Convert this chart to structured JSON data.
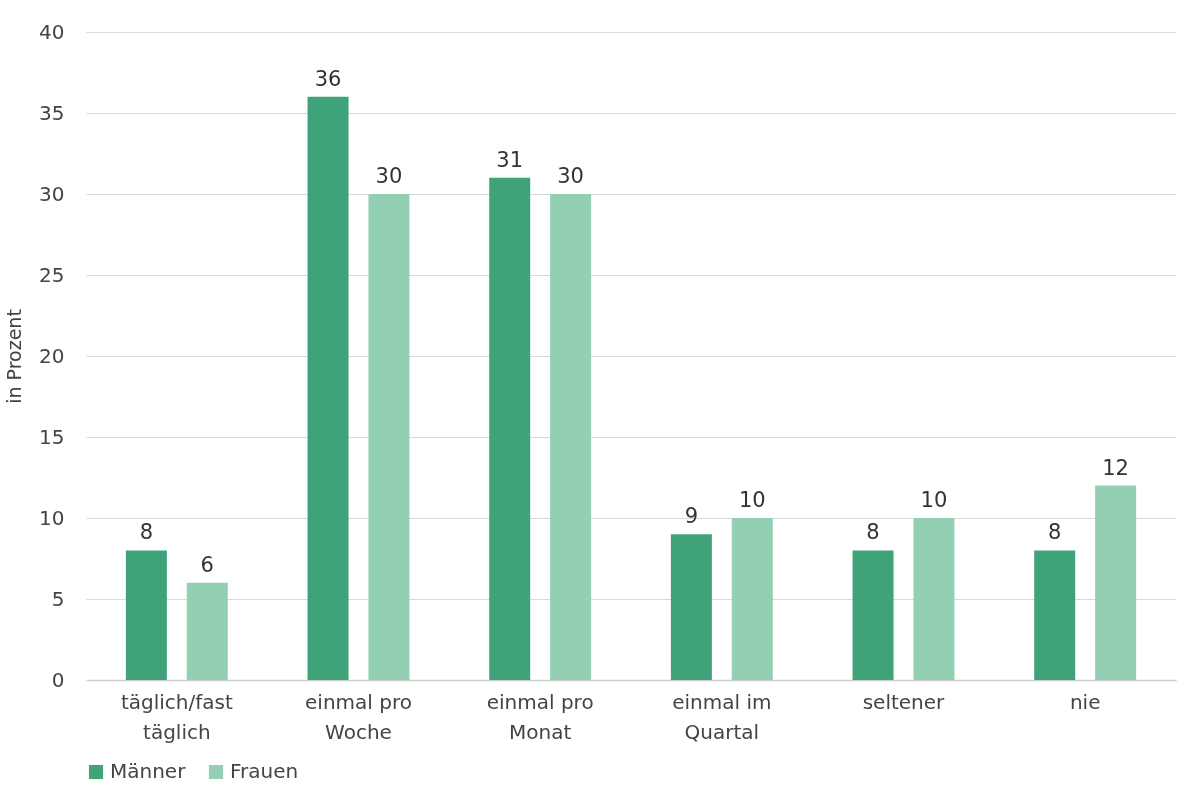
{
  "chart_data": {
    "type": "bar",
    "ylabel": "in Prozent",
    "categories": [
      "täglich/fast täglich",
      "einmal pro Woche",
      "einmal pro Monat",
      "einmal im Quartal",
      "seltener",
      "nie"
    ],
    "series": [
      {
        "name": "Männer",
        "color": "#3fa37a",
        "values": [
          8,
          36,
          31,
          9,
          8,
          8
        ]
      },
      {
        "name": "Frauen",
        "color": "#92cfb3",
        "values": [
          6,
          30,
          30,
          10,
          10,
          12
        ]
      }
    ],
    "ylim": [
      0,
      40
    ],
    "yticks": [
      0,
      5,
      10,
      15,
      20,
      25,
      30,
      35,
      40
    ],
    "grid": "y",
    "legend": "bottom",
    "data_labels": true
  }
}
